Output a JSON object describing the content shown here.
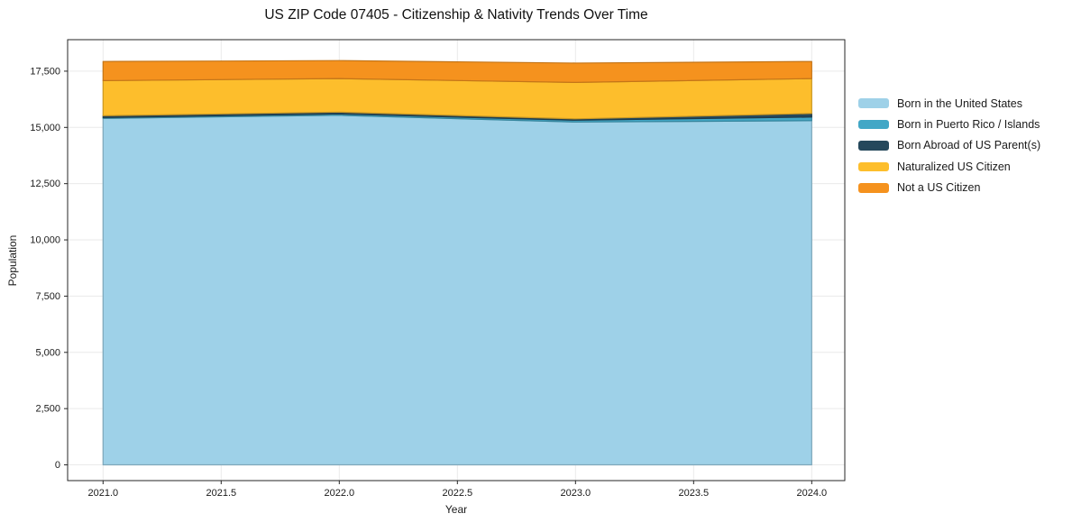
{
  "chart_data": {
    "type": "area",
    "stacked": true,
    "title": "US ZIP Code 07405 - Citizenship & Nativity Trends Over Time",
    "xlabel": "Year",
    "ylabel": "Population",
    "x": [
      2021,
      2022,
      2023,
      2024
    ],
    "series": [
      {
        "name": "Born in the United States",
        "color": "#9ED1E8",
        "values": [
          15400,
          15540,
          15240,
          15300
        ]
      },
      {
        "name": "Born in Puerto Rico / Islands",
        "color": "#42A7C6",
        "values": [
          40,
          60,
          80,
          160
        ]
      },
      {
        "name": "Born Abroad of US Parent(s)",
        "color": "#25485C",
        "values": [
          80,
          80,
          60,
          160
        ]
      },
      {
        "name": "Naturalized US Citizen",
        "color": "#FDBE2C",
        "values": [
          1560,
          1490,
          1620,
          1550
        ]
      },
      {
        "name": "Not a US Citizen",
        "color": "#F5921E",
        "values": [
          850,
          800,
          860,
          760
        ]
      }
    ],
    "xticks": {
      "values": [
        2021.0,
        2021.5,
        2022.0,
        2022.5,
        2023.0,
        2023.5,
        2024.0
      ],
      "labels": [
        "2021.0",
        "2021.5",
        "2022.0",
        "2022.5",
        "2023.0",
        "2023.5",
        "2024.0"
      ]
    },
    "yticks": {
      "values": [
        0,
        2500,
        5000,
        7500,
        10000,
        12500,
        15000,
        17500
      ],
      "labels": [
        "0",
        "2,500",
        "5,000",
        "7,500",
        "10,000",
        "12,500",
        "15,000",
        "17,500"
      ]
    },
    "xlim": [
      2020.85,
      2024.14
    ],
    "ylim": [
      -700,
      18900
    ],
    "grid": true,
    "legend_position": "right",
    "colors": {
      "grid": "#EAEAEA",
      "spine": "#262626",
      "text": "#1a1a1a"
    }
  }
}
